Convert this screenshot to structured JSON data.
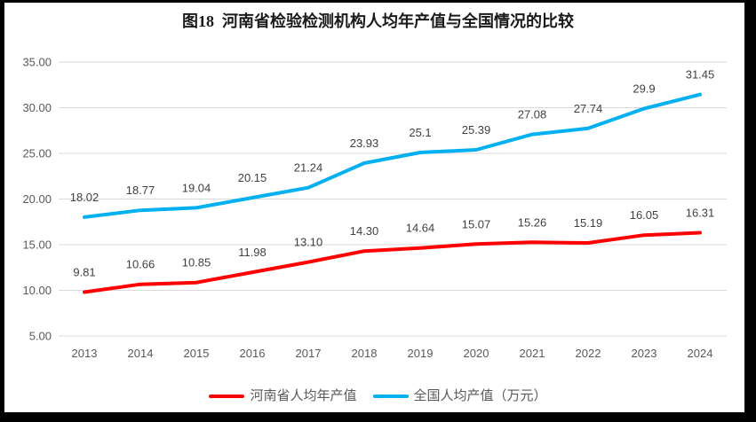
{
  "title": "图18  河南省检验检测机构人均年产值与全国情况的比较",
  "chart_data": {
    "type": "line",
    "x": [
      "2013",
      "2014",
      "2015",
      "2016",
      "2017",
      "2018",
      "2019",
      "2020",
      "2021",
      "2022",
      "2023",
      "2024"
    ],
    "series": [
      {
        "name": "河南省人均年产值",
        "color": "#FF0000",
        "values": [
          9.81,
          10.66,
          10.85,
          11.98,
          13.1,
          14.3,
          14.64,
          15.07,
          15.26,
          15.19,
          16.05,
          16.31
        ],
        "labels": [
          "9.81",
          "10.66",
          "10.85",
          "11.98",
          "13.10",
          "14.30",
          "14.64",
          "15.07",
          "15.26",
          "15.19",
          "16.05",
          "16.31"
        ]
      },
      {
        "name": "全国人均产值（万元）",
        "color": "#00B0F0",
        "values": [
          18.02,
          18.77,
          19.04,
          20.15,
          21.24,
          23.93,
          25.1,
          25.39,
          27.08,
          27.74,
          29.9,
          31.45
        ],
        "labels": [
          "18.02",
          "18.77",
          "19.04",
          "20.15",
          "21.24",
          "23.93",
          "25.1",
          "25.39",
          "27.08",
          "27.74",
          "29.9",
          "31.45"
        ]
      }
    ],
    "ylim": [
      5,
      35
    ],
    "ytick_step": 5,
    "ytick_labels": [
      "5.00",
      "10.00",
      "15.00",
      "20.00",
      "25.00",
      "30.00",
      "35.00"
    ],
    "grid": true,
    "legend_position": "bottom",
    "colors": {
      "grid": "#D9D9D9",
      "axis_text": "#595959",
      "data_label_text": "#404040",
      "title_text": "#1a1a1a",
      "frame_border": "#000000"
    }
  }
}
